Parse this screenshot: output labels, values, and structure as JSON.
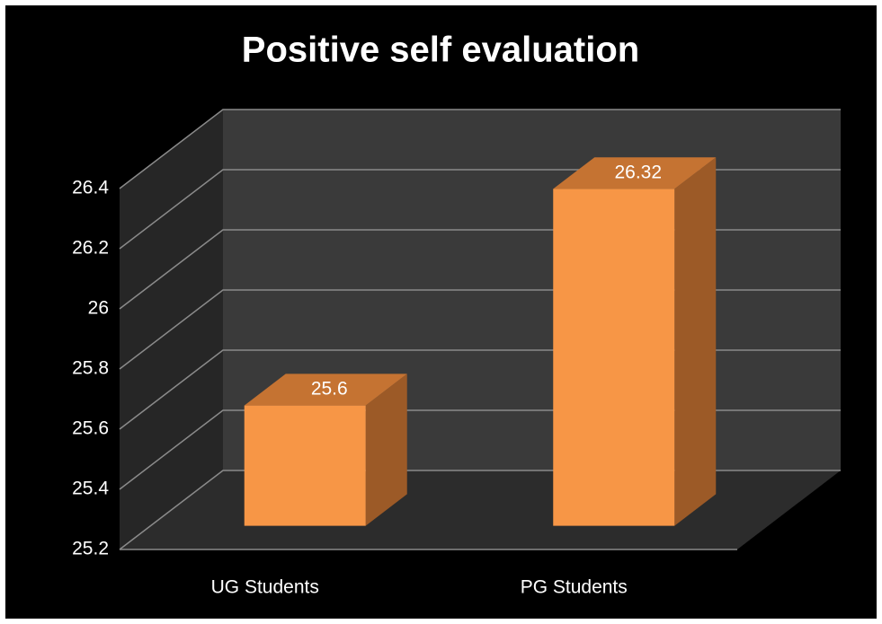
{
  "chart_data": {
    "type": "bar3d",
    "title": "Positive self evaluation",
    "categories": [
      "UG Students",
      "PG Students"
    ],
    "values": [
      25.6,
      26.32
    ],
    "color": "#f79646",
    "ylim": [
      25.2,
      26.4
    ],
    "yticks": [
      25.2,
      25.4,
      25.6,
      25.8,
      26,
      26.2,
      26.4
    ],
    "grid": true
  }
}
